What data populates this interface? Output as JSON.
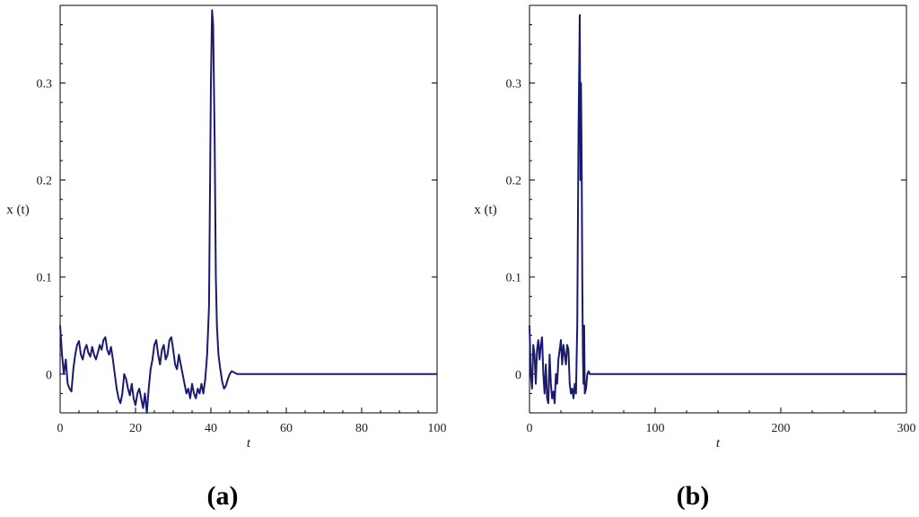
{
  "line_color": "#1a1a6e",
  "chart_data": [
    {
      "type": "line",
      "panel_label": "(a)",
      "xlabel": "t",
      "ylabel": "x (t)",
      "xlim": [
        0,
        100
      ],
      "ylim": [
        -0.04,
        0.38
      ],
      "xticks": [
        0,
        20,
        40,
        60,
        80,
        100
      ],
      "yticks": [
        0,
        0.1,
        0.2,
        0.3
      ],
      "xtick_labels": [
        "0",
        "20",
        "40",
        "60",
        "80",
        "100"
      ],
      "ytick_labels": [
        "0",
        "0.1",
        "0.2",
        "0.3"
      ],
      "grid": false,
      "series": [
        {
          "x": [
            0,
            0.5,
            1,
            1.5,
            2,
            2.5,
            3,
            3.5,
            4,
            4.5,
            5,
            5.5,
            6,
            6.5,
            7,
            7.5,
            8,
            8.5,
            9,
            9.5,
            10,
            10.5,
            11,
            11.5,
            12,
            12.5,
            13,
            13.5,
            14,
            14.5,
            15,
            15.5,
            16,
            16.5,
            17,
            17.5,
            18,
            18.5,
            19,
            19.5,
            20,
            20.5,
            21,
            21.5,
            22,
            22.5,
            23,
            23.5,
            24,
            24.5,
            25,
            25.5,
            26,
            26.5,
            27,
            27.5,
            28,
            28.5,
            29,
            29.5,
            30,
            30.5,
            31,
            31.5,
            32,
            32.5,
            33,
            33.5,
            34,
            34.5,
            35,
            35.5,
            36,
            36.5,
            37,
            37.5,
            38,
            38.5,
            39,
            39.5,
            40,
            40.3,
            40.6,
            41,
            41.3,
            41.6,
            42,
            42.5,
            43,
            43.5,
            44,
            44.5,
            45,
            45.5,
            46,
            46.5,
            47,
            48,
            50,
            60,
            70,
            80,
            90,
            100
          ],
          "y": [
            0.05,
            0.02,
            0.0,
            0.015,
            -0.01,
            -0.015,
            -0.018,
            0.005,
            0.02,
            0.03,
            0.034,
            0.02,
            0.015,
            0.025,
            0.03,
            0.022,
            0.018,
            0.028,
            0.02,
            0.015,
            0.022,
            0.03,
            0.025,
            0.035,
            0.038,
            0.025,
            0.02,
            0.028,
            0.015,
            0.0,
            -0.015,
            -0.025,
            -0.03,
            -0.02,
            0.0,
            -0.005,
            -0.015,
            -0.022,
            -0.01,
            -0.025,
            -0.032,
            -0.02,
            -0.015,
            -0.025,
            -0.035,
            -0.02,
            -0.04,
            -0.015,
            0.005,
            0.015,
            0.03,
            0.035,
            0.02,
            0.01,
            0.025,
            0.03,
            0.015,
            0.02,
            0.035,
            0.038,
            0.025,
            0.01,
            0.005,
            0.02,
            0.01,
            0.0,
            -0.01,
            -0.02,
            -0.015,
            -0.025,
            -0.01,
            -0.02,
            -0.025,
            -0.015,
            -0.02,
            -0.01,
            -0.02,
            -0.005,
            0.02,
            0.07,
            0.3,
            0.375,
            0.36,
            0.24,
            0.1,
            0.05,
            0.02,
            0.005,
            -0.008,
            -0.015,
            -0.012,
            -0.005,
            0.0,
            0.003,
            0.002,
            0.001,
            0.0,
            0.0,
            0.0,
            0.0,
            0.0,
            0.0,
            0.0,
            0.0
          ]
        }
      ]
    },
    {
      "type": "line",
      "panel_label": "(b)",
      "xlabel": "t",
      "ylabel": "x (t)",
      "xlim": [
        0,
        300
      ],
      "ylim": [
        -0.04,
        0.38
      ],
      "xticks": [
        0,
        100,
        200,
        300
      ],
      "yticks": [
        0,
        0.1,
        0.2,
        0.3
      ],
      "xtick_labels": [
        "0",
        "100",
        "200",
        "300"
      ],
      "ytick_labels": [
        "0",
        "0.1",
        "0.2",
        "0.3"
      ],
      "grid": false,
      "series": [
        {
          "x": [
            0,
            1,
            2,
            3,
            4,
            5,
            6,
            7,
            8,
            9,
            10,
            11,
            12,
            13,
            14,
            15,
            16,
            17,
            18,
            19,
            20,
            21,
            22,
            23,
            24,
            25,
            26,
            27,
            28,
            29,
            30,
            31,
            32,
            33,
            34,
            35,
            36,
            37,
            38,
            39,
            40,
            40.5,
            41,
            41.5,
            42,
            42.5,
            43,
            43.5,
            44,
            45,
            46,
            47,
            48,
            50,
            100,
            200,
            300
          ],
          "y": [
            0.05,
            0.0,
            -0.015,
            0.03,
            0.02,
            -0.01,
            0.025,
            0.035,
            0.015,
            0.03,
            0.038,
            0.0,
            -0.02,
            0.01,
            -0.025,
            -0.03,
            0.02,
            -0.01,
            -0.025,
            -0.018,
            -0.03,
            0.0,
            -0.01,
            0.015,
            0.025,
            0.035,
            0.01,
            0.03,
            0.02,
            0.01,
            0.03,
            0.025,
            -0.01,
            -0.02,
            -0.015,
            -0.025,
            -0.01,
            -0.02,
            0.05,
            0.25,
            0.37,
            0.2,
            0.3,
            0.22,
            0.1,
            0.02,
            -0.01,
            0.05,
            -0.02,
            -0.015,
            0.0,
            0.003,
            0.0,
            0.0,
            0.0,
            0.0,
            0.0
          ]
        }
      ]
    }
  ]
}
